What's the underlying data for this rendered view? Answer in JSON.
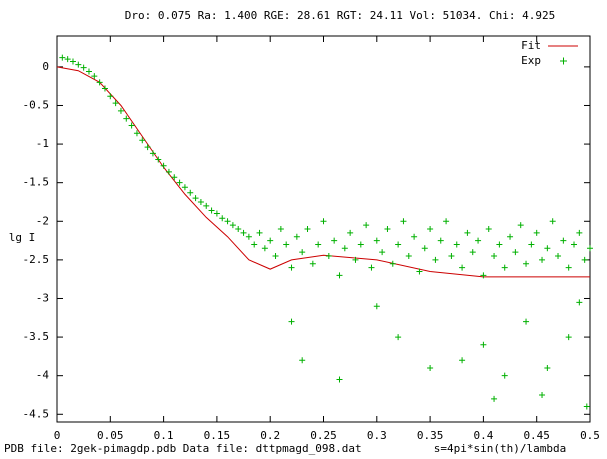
{
  "chart_data": {
    "type": "scatter",
    "title": "Dro: 0.075  Ra: 1.400  RGE:  28.61  RGT: 24.11  Vol:  51034.  Chi:  4.925",
    "y_label": "lg I",
    "x_label": "s=4pi*sin(th)/lambda",
    "footer": "PDB  file:  2gek-pimagdp.pdb   Data file:  dttpmagd_098.dat",
    "xlim": [
      0,
      0.5
    ],
    "ylim": [
      -4.6,
      0.4
    ],
    "xticks": [
      0,
      0.05,
      0.1,
      0.15,
      0.2,
      0.25,
      0.3,
      0.35,
      0.4,
      0.45,
      0.5
    ],
    "yticks": [
      0,
      -0.5,
      -1,
      -1.5,
      -2,
      -2.5,
      -3,
      -3.5,
      -4,
      -4.5
    ],
    "legend": "upper right",
    "series": [
      {
        "name": "Fit",
        "color": "#cc0000",
        "kind": "line",
        "x": [
          0,
          0.02,
          0.04,
          0.06,
          0.08,
          0.1,
          0.12,
          0.14,
          0.16,
          0.18,
          0.2,
          0.22,
          0.25,
          0.3,
          0.35,
          0.4,
          0.45,
          0.5
        ],
        "values": [
          0,
          -0.05,
          -0.2,
          -0.5,
          -0.9,
          -1.3,
          -1.65,
          -1.95,
          -2.2,
          -2.5,
          -2.62,
          -2.5,
          -2.44,
          -2.5,
          -2.65,
          -2.72,
          -2.72,
          -2.72
        ]
      },
      {
        "name": "Exp",
        "color": "#00b000",
        "kind": "points",
        "x": [
          0.005,
          0.01,
          0.015,
          0.02,
          0.025,
          0.03,
          0.035,
          0.04,
          0.045,
          0.05,
          0.055,
          0.06,
          0.065,
          0.07,
          0.075,
          0.08,
          0.085,
          0.09,
          0.095,
          0.1,
          0.105,
          0.11,
          0.115,
          0.12,
          0.125,
          0.13,
          0.135,
          0.14,
          0.145,
          0.15,
          0.155,
          0.16,
          0.165,
          0.17,
          0.175,
          0.18,
          0.185,
          0.19,
          0.195,
          0.2,
          0.205,
          0.21,
          0.215,
          0.22,
          0.225,
          0.23,
          0.235,
          0.24,
          0.245,
          0.25,
          0.255,
          0.26,
          0.265,
          0.27,
          0.275,
          0.28,
          0.285,
          0.29,
          0.295,
          0.3,
          0.305,
          0.31,
          0.315,
          0.32,
          0.325,
          0.33,
          0.335,
          0.34,
          0.345,
          0.35,
          0.355,
          0.36,
          0.365,
          0.37,
          0.375,
          0.38,
          0.385,
          0.39,
          0.395,
          0.4,
          0.405,
          0.41,
          0.415,
          0.42,
          0.425,
          0.43,
          0.435,
          0.44,
          0.445,
          0.45,
          0.455,
          0.46,
          0.465,
          0.47,
          0.475,
          0.48,
          0.485,
          0.49,
          0.495,
          0.5,
          0.22,
          0.23,
          0.265,
          0.32,
          0.35,
          0.38,
          0.4,
          0.41,
          0.44,
          0.46,
          0.48,
          0.49,
          0.455,
          0.497,
          0.3,
          0.42
        ],
        "values": [
          0.12,
          0.1,
          0.07,
          0.03,
          -0.01,
          -0.06,
          -0.12,
          -0.2,
          -0.28,
          -0.38,
          -0.47,
          -0.57,
          -0.67,
          -0.76,
          -0.86,
          -0.95,
          -1.04,
          -1.12,
          -1.2,
          -1.28,
          -1.36,
          -1.43,
          -1.5,
          -1.56,
          -1.63,
          -1.7,
          -1.75,
          -1.8,
          -1.86,
          -1.9,
          -1.96,
          -2.0,
          -2.05,
          -2.1,
          -2.15,
          -2.2,
          -2.3,
          -2.15,
          -2.35,
          -2.25,
          -2.45,
          -2.1,
          -2.3,
          -2.6,
          -2.2,
          -2.4,
          -2.1,
          -2.55,
          -2.3,
          -2.0,
          -2.45,
          -2.25,
          -2.7,
          -2.35,
          -2.15,
          -2.5,
          -2.3,
          -2.05,
          -2.6,
          -2.25,
          -2.4,
          -2.1,
          -2.55,
          -2.3,
          -2.0,
          -2.45,
          -2.2,
          -2.65,
          -2.35,
          -2.1,
          -2.5,
          -2.25,
          -2.0,
          -2.45,
          -2.3,
          -2.6,
          -2.15,
          -2.4,
          -2.25,
          -2.7,
          -2.1,
          -2.45,
          -2.3,
          -2.6,
          -2.2,
          -2.4,
          -2.05,
          -2.55,
          -2.3,
          -2.15,
          -2.5,
          -2.35,
          -2.0,
          -2.45,
          -2.25,
          -2.6,
          -2.3,
          -2.15,
          -2.5,
          -2.35,
          -3.3,
          -3.8,
          -4.05,
          -3.5,
          -3.9,
          -3.8,
          -3.6,
          -4.3,
          -3.3,
          -3.9,
          -3.5,
          -3.05,
          -4.25,
          -4.4,
          -3.1,
          -4.0
        ]
      }
    ]
  }
}
